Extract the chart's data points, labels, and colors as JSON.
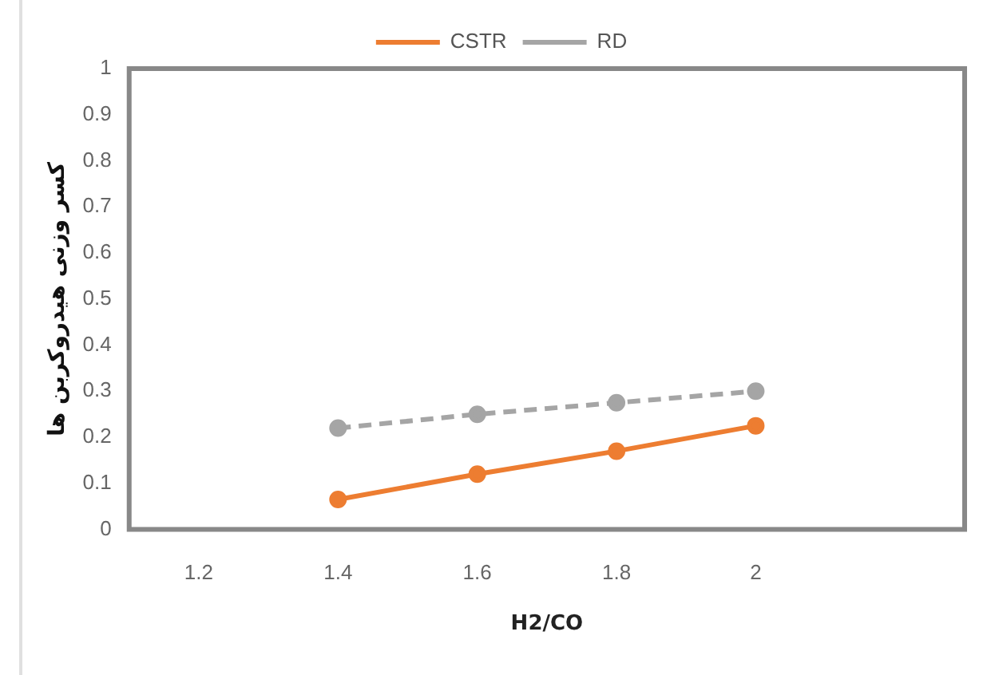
{
  "chart_data": {
    "type": "line",
    "xlabel": "H2/CO",
    "ylabel": "کسر وزنی هیدروکربن ها",
    "categories": [
      "1.2",
      "1.4",
      "1.6",
      "1.8",
      "2",
      null
    ],
    "series": [
      {
        "name": "CSTR",
        "color": "#ed7d31",
        "values": [
          null,
          0.065,
          0.12,
          0.17,
          0.225,
          null
        ],
        "line_style": "solid"
      },
      {
        "name": "RD",
        "color": "#a5a5a5",
        "values": [
          null,
          0.22,
          0.25,
          0.275,
          0.3,
          null
        ],
        "line_style": "dashed"
      }
    ],
    "ylim": [
      0,
      1
    ],
    "yticks": [
      0,
      0.1,
      0.2,
      0.3,
      0.4,
      0.5,
      0.6,
      0.7,
      0.8,
      0.9,
      1
    ],
    "grid": false,
    "legend": "top",
    "marker": "circle"
  }
}
